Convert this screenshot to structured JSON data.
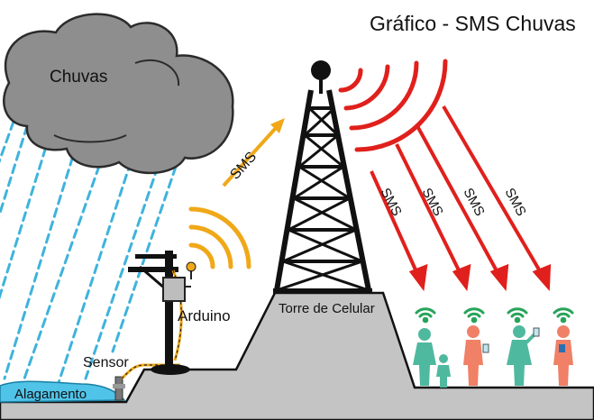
{
  "title": "Gráfico - SMS Chuvas",
  "labels": {
    "cloud": "Chuvas",
    "arduino": "Arduino",
    "sensor": "Sensor",
    "flood": "Alagamento",
    "tower": "Torre de Celular",
    "sms": "SMS"
  },
  "colors": {
    "cloud": "#8e8e8e",
    "rain": "#3fb3dc",
    "ground": "#c4c4c4",
    "water": "#4fc3e8",
    "signal_orange": "#f0a818",
    "signal_red": "#e0201c",
    "people_teal": "#4fb99f",
    "people_salmon": "#f08066",
    "wifi_green": "#27a35a"
  }
}
